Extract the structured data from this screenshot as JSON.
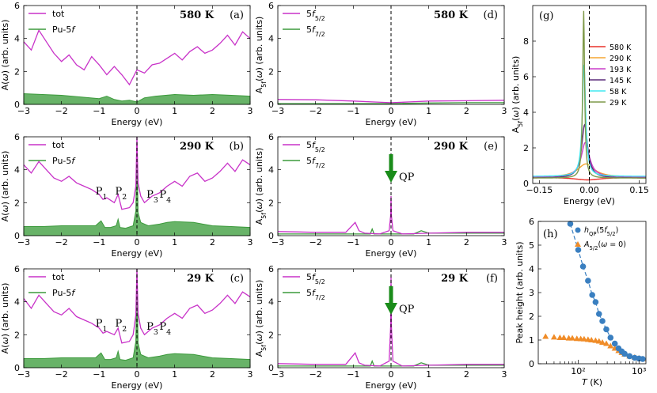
{
  "chart_data": [
    {
      "id": "a",
      "type": "area",
      "panel_label": "(a)",
      "temperature": "580 K",
      "xlabel": "Energy (eV)",
      "ylabel": "A(ω) (arb. units)",
      "xlim": [
        -3,
        3
      ],
      "ylim": [
        0,
        6
      ],
      "xticks": [
        "−3",
        "−2",
        "−1",
        "0",
        "1",
        "2",
        "3"
      ],
      "yticks": [
        "0",
        "2",
        "4",
        "6"
      ],
      "legend": [
        "tot",
        "Pu-5f"
      ],
      "series": [
        {
          "name": "tot",
          "color": "#c832c8",
          "x": [
            -3,
            -2.8,
            -2.6,
            -2.4,
            -2.2,
            -2.0,
            -1.8,
            -1.6,
            -1.4,
            -1.2,
            -1.0,
            -0.8,
            -0.6,
            -0.4,
            -0.2,
            0,
            0.2,
            0.4,
            0.6,
            0.8,
            1.0,
            1.2,
            1.4,
            1.6,
            1.8,
            2.0,
            2.2,
            2.4,
            2.6,
            2.8,
            3.0
          ],
          "y": [
            3.8,
            3.3,
            4.5,
            3.8,
            3.1,
            2.6,
            3.0,
            2.4,
            2.1,
            2.9,
            2.4,
            1.8,
            2.3,
            1.8,
            1.2,
            2.1,
            1.9,
            2.4,
            2.5,
            2.8,
            3.1,
            2.7,
            3.2,
            3.5,
            3.1,
            3.3,
            3.7,
            4.2,
            3.6,
            4.4,
            4.0
          ]
        },
        {
          "name": "Pu-5f",
          "color": "#3c9a3c",
          "x": [
            -3,
            -2.5,
            -2.0,
            -1.5,
            -1.0,
            -0.8,
            -0.6,
            -0.4,
            -0.2,
            0,
            0.2,
            0.5,
            1.0,
            1.5,
            2.0,
            2.5,
            3.0
          ],
          "y": [
            0.65,
            0.6,
            0.55,
            0.45,
            0.35,
            0.5,
            0.3,
            0.2,
            0.25,
            0.15,
            0.4,
            0.5,
            0.6,
            0.55,
            0.6,
            0.55,
            0.5
          ]
        }
      ]
    },
    {
      "id": "b",
      "type": "area",
      "panel_label": "(b)",
      "temperature": "290 K",
      "xlabel": "Energy (eV)",
      "ylabel": "A(ω) (arb. units)",
      "xlim": [
        -3,
        3
      ],
      "ylim": [
        0,
        6
      ],
      "xticks": [
        "−3",
        "−2",
        "−1",
        "0",
        "1",
        "2",
        "3"
      ],
      "yticks": [
        "0",
        "2",
        "4",
        "6"
      ],
      "legend": [
        "tot",
        "Pu-5f"
      ],
      "peaks": [
        "P1",
        "P2",
        "P3",
        "P4"
      ],
      "series": [
        {
          "name": "tot",
          "color": "#c832c8",
          "x": [
            -3,
            -2.8,
            -2.6,
            -2.4,
            -2.2,
            -2.0,
            -1.8,
            -1.6,
            -1.4,
            -1.2,
            -1.0,
            -0.9,
            -0.8,
            -0.6,
            -0.5,
            -0.4,
            -0.2,
            -0.1,
            -0.03,
            0,
            0.03,
            0.1,
            0.2,
            0.4,
            0.6,
            0.8,
            1.0,
            1.2,
            1.4,
            1.6,
            1.8,
            2.0,
            2.2,
            2.4,
            2.6,
            2.8,
            3.0
          ],
          "y": [
            4.3,
            3.8,
            4.5,
            4.0,
            3.5,
            3.3,
            3.6,
            3.2,
            3.0,
            2.8,
            2.5,
            2.2,
            2.3,
            2.0,
            2.5,
            1.6,
            1.7,
            2.0,
            3.0,
            6.0,
            3.2,
            2.4,
            2.0,
            2.4,
            2.6,
            3.0,
            3.3,
            3.0,
            3.6,
            3.8,
            3.3,
            3.5,
            3.9,
            4.4,
            3.9,
            4.6,
            4.3
          ]
        },
        {
          "name": "Pu-5f",
          "color": "#3c9a3c",
          "x": [
            -3,
            -2.5,
            -2.0,
            -1.5,
            -1.1,
            -0.95,
            -0.85,
            -0.7,
            -0.55,
            -0.5,
            -0.45,
            -0.3,
            -0.1,
            -0.03,
            0,
            0.03,
            0.1,
            0.3,
            0.6,
            0.8,
            1.0,
            1.5,
            2.0,
            2.5,
            3.0
          ],
          "y": [
            0.55,
            0.55,
            0.6,
            0.6,
            0.6,
            0.9,
            0.5,
            0.5,
            0.6,
            1.0,
            0.5,
            0.45,
            0.6,
            1.5,
            5.9,
            1.4,
            0.8,
            0.6,
            0.7,
            0.8,
            0.85,
            0.8,
            0.6,
            0.55,
            0.5
          ]
        }
      ]
    },
    {
      "id": "c",
      "type": "area",
      "panel_label": "(c)",
      "temperature": "29 K",
      "xlabel": "Energy (eV)",
      "ylabel": "A(ω) (arb. units)",
      "xlim": [
        -3,
        3
      ],
      "ylim": [
        0,
        6
      ],
      "xticks": [
        "−3",
        "−2",
        "−1",
        "0",
        "1",
        "2",
        "3"
      ],
      "yticks": [
        "0",
        "2",
        "4",
        "6"
      ],
      "legend": [
        "tot",
        "Pu-5f"
      ],
      "peaks": [
        "P1",
        "P2",
        "P3",
        "P4"
      ],
      "series": [
        {
          "name": "tot",
          "color": "#c832c8",
          "x": [
            -3,
            -2.8,
            -2.6,
            -2.4,
            -2.2,
            -2.0,
            -1.8,
            -1.6,
            -1.4,
            -1.2,
            -1.0,
            -0.9,
            -0.8,
            -0.6,
            -0.5,
            -0.4,
            -0.2,
            -0.1,
            -0.03,
            0,
            0.03,
            0.1,
            0.2,
            0.4,
            0.6,
            0.8,
            1.0,
            1.2,
            1.4,
            1.6,
            1.8,
            2.0,
            2.2,
            2.4,
            2.6,
            2.8,
            3.0
          ],
          "y": [
            4.2,
            3.6,
            4.4,
            3.9,
            3.4,
            3.2,
            3.6,
            3.1,
            2.9,
            2.7,
            2.4,
            2.1,
            2.2,
            2.0,
            2.4,
            1.5,
            1.6,
            2.0,
            3.2,
            6.0,
            3.3,
            2.4,
            2.0,
            2.4,
            2.6,
            3.0,
            3.3,
            3.0,
            3.6,
            3.8,
            3.3,
            3.5,
            3.9,
            4.4,
            3.9,
            4.6,
            4.3
          ]
        },
        {
          "name": "Pu-5f",
          "color": "#3c9a3c",
          "x": [
            -3,
            -2.5,
            -2.0,
            -1.5,
            -1.1,
            -0.95,
            -0.85,
            -0.7,
            -0.55,
            -0.5,
            -0.45,
            -0.3,
            -0.1,
            -0.03,
            0,
            0.03,
            0.1,
            0.3,
            0.6,
            0.8,
            1.0,
            1.5,
            2.0,
            2.5,
            3.0
          ],
          "y": [
            0.55,
            0.55,
            0.6,
            0.6,
            0.6,
            0.9,
            0.5,
            0.5,
            0.6,
            1.0,
            0.5,
            0.45,
            0.6,
            1.6,
            6.0,
            1.5,
            0.8,
            0.6,
            0.7,
            0.8,
            0.85,
            0.8,
            0.6,
            0.55,
            0.5
          ]
        }
      ]
    },
    {
      "id": "d",
      "type": "line",
      "panel_label": "(d)",
      "temperature": "580 K",
      "xlabel": "Energy (eV)",
      "ylabel": "A5f(ω) (arb. units)",
      "xlim": [
        -3,
        3
      ],
      "ylim": [
        0,
        6
      ],
      "xticks": [
        "−3",
        "−2",
        "−1",
        "0",
        "1",
        "2",
        "3"
      ],
      "yticks": [
        "0",
        "2",
        "4",
        "6"
      ],
      "legend": [
        "5f5/2",
        "5f7/2"
      ],
      "series": [
        {
          "name": "5f5/2",
          "color": "#c832c8",
          "x": [
            -3,
            -2,
            -1,
            -0.5,
            0,
            0.5,
            1,
            2,
            3
          ],
          "y": [
            0.3,
            0.28,
            0.2,
            0.15,
            0.1,
            0.15,
            0.2,
            0.22,
            0.25
          ]
        },
        {
          "name": "5f7/2",
          "color": "#3c9a3c",
          "x": [
            -3,
            -2,
            -1,
            0,
            1,
            2,
            3
          ],
          "y": [
            0.05,
            0.05,
            0.05,
            0.05,
            0.08,
            0.1,
            0.1
          ]
        }
      ]
    },
    {
      "id": "e",
      "type": "line",
      "panel_label": "(e)",
      "temperature": "290 K",
      "annotation": "QP",
      "xlabel": "Energy (eV)",
      "ylabel": "A5f(ω) (arb. units)",
      "xlim": [
        -3,
        3
      ],
      "ylim": [
        0,
        6
      ],
      "xticks": [
        "−3",
        "−2",
        "−1",
        "0",
        "1",
        "2",
        "3"
      ],
      "yticks": [
        "0",
        "2",
        "4",
        "6"
      ],
      "legend": [
        "5f5/2",
        "5f7/2"
      ],
      "series": [
        {
          "name": "5f5/2",
          "color": "#c832c8",
          "x": [
            -3,
            -2,
            -1.2,
            -0.95,
            -0.85,
            -0.7,
            -0.3,
            -0.05,
            -0.01,
            0,
            0.01,
            0.05,
            0.3,
            1,
            2,
            3
          ],
          "y": [
            0.25,
            0.2,
            0.2,
            0.8,
            0.3,
            0.15,
            0.1,
            0.3,
            1.2,
            2.4,
            1.2,
            0.3,
            0.1,
            0.15,
            0.2,
            0.2
          ]
        },
        {
          "name": "5f7/2",
          "color": "#3c9a3c",
          "x": [
            -3,
            -1,
            -0.55,
            -0.5,
            -0.45,
            0,
            0.6,
            0.8,
            1,
            2,
            3
          ],
          "y": [
            0.1,
            0.1,
            0.1,
            0.4,
            0.1,
            0.1,
            0.1,
            0.3,
            0.15,
            0.15,
            0.15
          ]
        }
      ]
    },
    {
      "id": "f",
      "type": "line",
      "panel_label": "(f)",
      "temperature": "29 K",
      "annotation": "QP",
      "xlabel": "Energy (eV)",
      "ylabel": "A5f(ω) (arb. units)",
      "xlim": [
        -3,
        3
      ],
      "ylim": [
        0,
        6
      ],
      "xticks": [
        "−3",
        "−2",
        "−1",
        "0",
        "1",
        "2",
        "3"
      ],
      "yticks": [
        "0",
        "2",
        "4",
        "6"
      ],
      "legend": [
        "5f5/2",
        "5f7/2"
      ],
      "series": [
        {
          "name": "5f5/2",
          "color": "#c832c8",
          "x": [
            -3,
            -2,
            -1.2,
            -0.95,
            -0.85,
            -0.7,
            -0.3,
            -0.05,
            -0.01,
            0,
            0.01,
            0.05,
            0.3,
            1,
            2,
            3
          ],
          "y": [
            0.25,
            0.2,
            0.2,
            0.9,
            0.3,
            0.15,
            0.1,
            0.4,
            2.5,
            5.5,
            2.5,
            0.4,
            0.1,
            0.15,
            0.2,
            0.2
          ]
        },
        {
          "name": "5f7/2",
          "color": "#3c9a3c",
          "x": [
            -3,
            -1,
            -0.55,
            -0.5,
            -0.45,
            0,
            0.6,
            0.8,
            1,
            2,
            3
          ],
          "y": [
            0.1,
            0.1,
            0.1,
            0.4,
            0.1,
            0.1,
            0.1,
            0.3,
            0.15,
            0.15,
            0.15
          ]
        }
      ]
    },
    {
      "id": "g",
      "type": "line",
      "panel_label": "(g)",
      "xlabel": "Energy (eV)",
      "ylabel": "A5f(ω) (arb. units)",
      "xlim": [
        -0.17,
        0.17
      ],
      "ylim": [
        0,
        10
      ],
      "xticks": [
        "−0.15",
        "0.00",
        "0.15"
      ],
      "yticks": [
        "0",
        "2",
        "4",
        "6",
        "8"
      ],
      "legend": [
        "580 K",
        "290 K",
        "193 K",
        "145 K",
        "58 K",
        "29 K"
      ],
      "series": [
        {
          "name": "580 K",
          "color": "#e8312a",
          "peak": 0.2,
          "x0": -0.005
        },
        {
          "name": "290 K",
          "color": "#f5a630",
          "peak": 1.1,
          "x0": -0.01
        },
        {
          "name": "193 K",
          "color": "#c83cc8",
          "peak": 2.3,
          "x0": -0.012
        },
        {
          "name": "145 K",
          "color": "#5a2a7a",
          "peak": 3.3,
          "x0": -0.014
        },
        {
          "name": "58 K",
          "color": "#40e8f0",
          "peak": 6.7,
          "x0": -0.016
        },
        {
          "name": "29 K",
          "color": "#7f9a4a",
          "peak": 9.7,
          "x0": -0.017
        }
      ]
    },
    {
      "id": "h",
      "type": "scatter",
      "panel_label": "(h)",
      "xlabel": "T (K)",
      "ylabel": "Peak height (arb. units)",
      "xscale": "log",
      "xlim": [
        22,
        1300
      ],
      "ylim": [
        0,
        6
      ],
      "xticks": [
        "10²",
        "10³"
      ],
      "yticks": [
        "0",
        "1",
        "2",
        "3",
        "4",
        "5",
        "6"
      ],
      "legend": [
        "h_QP(5f5/2)",
        "A5/2(ω=0)"
      ],
      "series": [
        {
          "name": "h_QP(5f5/2)",
          "color": "#3a7fc0",
          "marker": "circle",
          "x": [
            74,
            100,
            120,
            145,
            170,
            193,
            220,
            250,
            290,
            340,
            400,
            460,
            520,
            580,
            700,
            850,
            1000,
            1150
          ],
          "y": [
            5.9,
            4.8,
            4.1,
            3.5,
            2.9,
            2.6,
            2.1,
            1.8,
            1.45,
            1.1,
            0.85,
            0.65,
            0.52,
            0.42,
            0.32,
            0.25,
            0.22,
            0.2
          ]
        },
        {
          "name": "A5/2(ω=0)",
          "color": "#f08c28",
          "marker": "triangle",
          "x": [
            29,
            40,
            50,
            58,
            70,
            80,
            95,
            110,
            125,
            145,
            165,
            193,
            220,
            250,
            290,
            340,
            400,
            460,
            520,
            580,
            700,
            850,
            1000,
            1150
          ],
          "y": [
            1.15,
            1.12,
            1.1,
            1.1,
            1.08,
            1.08,
            1.06,
            1.05,
            1.04,
            1.02,
            1.0,
            0.98,
            0.95,
            0.9,
            0.85,
            0.75,
            0.65,
            0.55,
            0.47,
            0.4,
            0.32,
            0.27,
            0.23,
            0.2
          ]
        }
      ]
    }
  ]
}
